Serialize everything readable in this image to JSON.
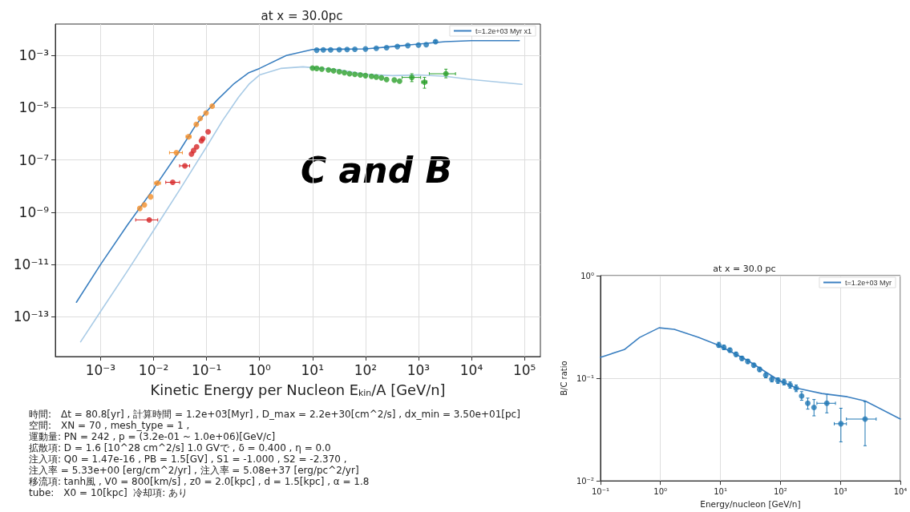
{
  "chart_data": [
    {
      "type": "scatter",
      "title": "at x = 30.0pc",
      "xlabel": "Kinetic Energy per Nucleon E$_{kin}$/A [GeV/n]",
      "log": "xy",
      "grid": true,
      "legend": "top right",
      "marker": "circle",
      "xlim": [
        0.00014,
        200000.0
      ],
      "ylim": [
        3e-15,
        0.016
      ],
      "xticks": [
        {
          "value": 0.001,
          "label": "10⁻³"
        },
        {
          "value": 0.01,
          "label": "10⁻²"
        },
        {
          "value": 0.1,
          "label": "10⁻¹"
        },
        {
          "value": 1,
          "label": "10⁰"
        },
        {
          "value": 10,
          "label": "10¹"
        },
        {
          "value": 100,
          "label": "10²"
        },
        {
          "value": 1000,
          "label": "10³"
        },
        {
          "value": 10000,
          "label": "10⁴"
        },
        {
          "value": 100000,
          "label": "10⁵"
        }
      ],
      "yticks": [
        {
          "value": 1e-13,
          "label": "10⁻¹³"
        },
        {
          "value": 1e-11,
          "label": "10⁻¹¹"
        },
        {
          "value": 1e-09,
          "label": "10⁻⁹"
        },
        {
          "value": 1e-07,
          "label": "10⁻⁷"
        },
        {
          "value": 1e-05,
          "label": "10⁻⁵"
        },
        {
          "value": 0.001,
          "label": "10⁻³"
        }
      ],
      "series": [
        {
          "type": "line",
          "marker": "none",
          "name": "t=1.2e+03 Myr x1",
          "color": "#3a7fc0",
          "x": [
            0.00035,
            0.001,
            0.0032,
            0.01,
            0.032,
            0.063,
            0.1,
            0.16,
            0.32,
            0.63,
            1,
            3.2,
            10,
            32,
            100,
            320,
            1000,
            3200,
            10000,
            80000
          ],
          "values": [
            3.6e-13,
            1e-11,
            3.2e-10,
            7.9e-09,
            2.5e-07,
            2.2e-06,
            7.1e-06,
            2e-05,
            7.9e-05,
            0.00022,
            0.00032,
            0.001,
            0.0017,
            0.00175,
            0.0018,
            0.0022,
            0.00275,
            0.0034,
            0.0037,
            0.0037
          ]
        },
        {
          "type": "line",
          "marker": "none",
          "color": "#a9cbe6",
          "x": [
            0.00042,
            0.001,
            0.0032,
            0.01,
            0.032,
            0.1,
            0.2,
            0.4,
            0.63,
            1,
            2.5,
            6.6,
            32,
            100,
            320,
            1000,
            3200,
            10000,
            90000
          ],
          "values": [
            1.1e-14,
            1.6e-13,
            5.6e-12,
            2e-10,
            7.9e-09,
            3.2e-07,
            3.2e-06,
            2.5e-05,
            7.9e-05,
            0.00018,
            0.00032,
            0.00037,
            0.00028,
            0.00019,
            0.00017,
            0.00018,
            0.00016,
            0.00012,
            7.9e-05
          ]
        },
        {
          "color": "#f28e2b",
          "x": [
            0.0055,
            0.0067,
            0.0088,
            0.0118,
            0.027,
            0.046,
            0.064,
            0.076,
            0.098,
            0.128
          ],
          "values": [
            1.4e-09,
            1.9e-09,
            3.9e-09,
            1.3e-08,
            1.9e-07,
            7.8e-07,
            2.3e-06,
            3.9e-06,
            6.3e-06,
            1.15e-05
          ],
          "xerrors": [
            null,
            null,
            null,
            [
              0.0105,
              0.0135
            ],
            [
              0.02,
              0.035
            ],
            [
              0.041,
              0.051
            ],
            null,
            null,
            null,
            null
          ]
        },
        {
          "color": "#d62728",
          "x": [
            0.0083,
            0.023,
            0.039,
            0.052,
            0.057,
            0.065,
            0.08,
            0.085,
            0.107
          ],
          "values": [
            5.1e-10,
            1.4e-08,
            6e-08,
            1.7e-07,
            2.3e-07,
            3.2e-07,
            5.4e-07,
            6.6e-07,
            1.2e-06
          ],
          "xerrors": [
            [
              0.0046,
              0.012
            ],
            [
              0.017,
              0.031
            ],
            [
              0.031,
              0.048
            ],
            null,
            null,
            null,
            null,
            null,
            null
          ]
        },
        {
          "color": "#1f77b4",
          "x": [
            12,
            16,
            22,
            32,
            45,
            63,
            100,
            160,
            250,
            400,
            630,
            1000,
            1400,
            2100
          ],
          "values": [
            0.0016,
            0.00165,
            0.00165,
            0.00166,
            0.0017,
            0.00172,
            0.00178,
            0.0019,
            0.002,
            0.0022,
            0.0024,
            0.0025,
            0.0026,
            0.0034
          ],
          "errors": [
            null,
            null,
            null,
            null,
            null,
            null,
            null,
            null,
            null,
            null,
            null,
            null,
            null,
            [
              0.003,
              0.0038
            ]
          ]
        },
        {
          "color": "#2ca02c",
          "x": [
            10,
            12,
            15,
            20,
            25,
            32,
            40,
            50,
            63,
            80,
            100,
            130,
            160,
            200,
            250,
            350,
            440,
            750,
            1300,
            3300
          ],
          "values": [
            0.00033,
            0.00032,
            0.0003,
            0.00028,
            0.00026,
            0.00024,
            0.00022,
            0.0002,
            0.00019,
            0.00018,
            0.00017,
            0.00016,
            0.00015,
            0.00014,
            0.00012,
            0.000115,
            0.000105,
            0.000145,
            9.6e-05,
            0.0002
          ],
          "errors": [
            null,
            null,
            null,
            null,
            null,
            null,
            null,
            null,
            null,
            null,
            null,
            null,
            null,
            null,
            null,
            null,
            null,
            [
              0.0001,
              0.0002
            ],
            [
              5.6e-05,
              0.000145
            ],
            [
              0.00014,
              0.0003
            ]
          ],
          "xerrors": [
            null,
            null,
            null,
            null,
            null,
            null,
            null,
            null,
            null,
            null,
            null,
            null,
            null,
            null,
            null,
            null,
            null,
            [
              490,
              1100
            ],
            [
              1150,
              1450
            ],
            [
              1600,
              5000
            ]
          ]
        }
      ],
      "annotations": [
        "C and B",
        "時間:　Δt = 80.8[yr] , 計算時間 = 1.2e+03[Myr] , D_max = 2.2e+30[cm^2/s] , dx_min = 3.50e+01[pc]",
        "空間:　XN = 70 , mesh_type = 1 ,",
        "運動量: PN = 242 , p = (3.2e-01 ~ 1.0e+06)[GeV/c]",
        "拡散項: D = 1.6 [10^28 cm^2/s] 1.0 GVで , δ = 0.400 , η = 0.0",
        "注入項: Q0 = 1.47e-16 , PB = 1.5[GV] , S1 = -1.000 , S2 = -2.370 ,",
        "注入率 = 5.33e+00 [erg/cm^2/yr] , 注入率 = 5.08e+37 [erg/pc^2/yr]",
        "移流項: tanh風 , V0 = 800[km/s] , z0 = 2.0[kpc] , d = 1.5[kpc] , α = 1.8",
        "tube:　X0 = 10[kpc]  冷却項: あり"
      ]
    },
    {
      "type": "scatter",
      "title": "at x = 30.0 pc",
      "xlabel": "Energy/nucleon [GeV/n]",
      "ylabel": "B/C ratio",
      "log": "xy",
      "grid": true,
      "legend": "top right",
      "marker": "circle",
      "xlim": [
        0.1,
        10000
      ],
      "ylim": [
        0.01,
        1
      ],
      "xticks": [
        {
          "value": 0.1,
          "label": "10⁻¹"
        },
        {
          "value": 1,
          "label": "10⁰"
        },
        {
          "value": 10,
          "label": "10¹"
        },
        {
          "value": 100,
          "label": "10²"
        },
        {
          "value": 1000,
          "label": "10³"
        },
        {
          "value": 10000,
          "label": "10⁴"
        }
      ],
      "yticks": [
        {
          "value": 0.01,
          "label": "10⁻²"
        },
        {
          "value": 0.1,
          "label": "10⁻¹"
        },
        {
          "value": 1,
          "label": "10⁰"
        }
      ],
      "series": [
        {
          "type": "line",
          "marker": "none",
          "name": "t=1.2e+03 Myr",
          "color": "#3a7fc0",
          "x": [
            0.1,
            0.25,
            0.45,
            0.95,
            1.7,
            4.3,
            9.2,
            29,
            98,
            190,
            490,
            1300,
            2600,
            10000
          ],
          "values": [
            0.16,
            0.19,
            0.25,
            0.31,
            0.3,
            0.25,
            0.21,
            0.148,
            0.094,
            0.08,
            0.071,
            0.066,
            0.06,
            0.04
          ]
        },
        {
          "color": "#1f77b4",
          "x": [
            9.4,
            11.4,
            14.4,
            18.2,
            22.8,
            28.6,
            36,
            45,
            57,
            72,
            91,
            115,
            145,
            183,
            226,
            286,
            363,
            594,
            1020,
            2580
          ],
          "values": [
            0.21,
            0.2,
            0.188,
            0.171,
            0.156,
            0.146,
            0.134,
            0.122,
            0.107,
            0.098,
            0.095,
            0.092,
            0.086,
            0.08,
            0.067,
            0.057,
            0.052,
            0.057,
            0.036,
            0.04
          ],
          "errors": [
            [
              0.2,
              0.224
            ],
            [
              0.19,
              0.21
            ],
            [
              0.179,
              0.197
            ],
            [
              0.163,
              0.18
            ],
            [
              0.149,
              0.164
            ],
            [
              0.139,
              0.153
            ],
            [
              0.128,
              0.14
            ],
            [
              0.116,
              0.128
            ],
            [
              0.101,
              0.113
            ],
            [
              0.092,
              0.104
            ],
            [
              0.089,
              0.101
            ],
            [
              0.086,
              0.098
            ],
            [
              0.08,
              0.092
            ],
            [
              0.074,
              0.086
            ],
            [
              0.061,
              0.074
            ],
            [
              0.05,
              0.064
            ],
            [
              0.043,
              0.062
            ],
            [
              0.046,
              0.07
            ],
            [
              0.024,
              0.051
            ],
            [
              0.022,
              0.059
            ]
          ],
          "xerrors": [
            null,
            null,
            null,
            null,
            null,
            null,
            null,
            null,
            null,
            null,
            null,
            null,
            null,
            null,
            null,
            null,
            null,
            [
              406,
              828
            ],
            [
              790,
              1260
            ],
            [
              1260,
              3950
            ]
          ]
        }
      ]
    }
  ]
}
